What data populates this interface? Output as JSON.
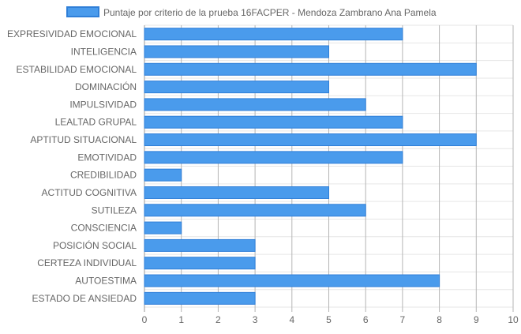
{
  "chart_data": {
    "type": "bar",
    "orientation": "horizontal",
    "title": "",
    "xlabel": "",
    "ylabel": "",
    "categories": [
      "EXPRESIVIDAD EMOCIONAL",
      "INTELIGENCIA",
      "ESTABILIDAD EMOCIONAL",
      "DOMINACIÓN",
      "IMPULSIVIDAD",
      "LEALTAD GRUPAL",
      "APTITUD SITUACIONAL",
      "EMOTIVIDAD",
      "CREDIBILIDAD",
      "ACTITUD COGNITIVA",
      "SUTILEZA",
      "CONSCIENCIA",
      "POSICIÓN SOCIAL",
      "CERTEZA INDIVIDUAL",
      "AUTOESTIMA",
      "ESTADO DE ANSIEDAD"
    ],
    "series": [
      {
        "name": "Puntaje por criterio de la prueba 16FACPER - Mendoza Zambrano Ana Pamela",
        "values": [
          7,
          5,
          9,
          5,
          6,
          7,
          9,
          7,
          1,
          5,
          6,
          1,
          3,
          3,
          8,
          3
        ],
        "color": "#4a9bec",
        "border_color": "#2f7fd8"
      }
    ],
    "xlim": [
      0,
      10
    ],
    "x_ticks": [
      "0",
      "1",
      "2",
      "3",
      "4",
      "5",
      "6",
      "7",
      "8",
      "9",
      "10"
    ],
    "grid": true,
    "legend_position": "top",
    "colors": {
      "grid": "#e6e6e6",
      "axis": "#999999",
      "label": "#666666"
    }
  }
}
